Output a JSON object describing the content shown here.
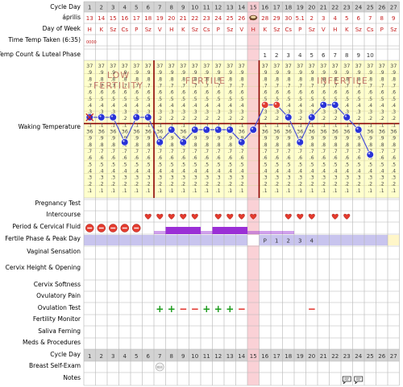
{
  "days": 27,
  "labels": {
    "cycle_day": "Cycle Day",
    "date": "április",
    "day_of_week": "Day of Week",
    "time_taken": "Time Temp Taken (6:35)",
    "temp_count": "Temp Count & Luteal Phase",
    "waking_temp": "Waking Temperature",
    "pregnancy_test": "Pregnancy Test",
    "intercourse": "Intercourse",
    "period_cf": "Period & Cervical Fluid",
    "fertile_phase": "Fertile Phase & Peak Day",
    "vaginal_sensation": "Vaginal Sensation",
    "cervix_height": "Cervix Height & Opening",
    "cervix_softness": "Cervix Softness",
    "ovulatory_pain": "Ovulatory Pain",
    "ovulation_test": "Ovulation Test",
    "fertility_monitor": "Fertility Monitor",
    "saliva_ferning": "Saliva Ferning",
    "meds": "Meds & Procedures",
    "cycle_day_bottom": "Cycle Day",
    "breast_exam": "Breast Self-Exam",
    "notes": "Notes"
  },
  "cycle_days": [
    "1",
    "2",
    "3",
    "4",
    "5",
    "6",
    "7",
    "8",
    "9",
    "10",
    "11",
    "12",
    "13",
    "14",
    "15",
    "16",
    "17",
    "18",
    "19",
    "20",
    "21",
    "22",
    "23",
    "24",
    "25",
    "26",
    "27"
  ],
  "dates": [
    "13",
    "14",
    "15",
    "16",
    "17",
    "18",
    "19",
    "20",
    "21",
    "22",
    "23",
    "24",
    "25",
    "26",
    "27",
    "28",
    "29",
    "30",
    "5.1",
    "2",
    "3",
    "4",
    "5",
    "6",
    "7",
    "8",
    "9"
  ],
  "weekdays": [
    "H",
    "K",
    "Sz",
    "Cs",
    "P",
    "Sz",
    "V",
    "H",
    "K",
    "Sz",
    "Cs",
    "P",
    "Sz",
    "V",
    "H",
    "K",
    "Sz",
    "Cs",
    "P",
    "Sz",
    "V",
    "H",
    "K",
    "Sz",
    "Cs",
    "P",
    "Sz"
  ],
  "time_taken_mark": "0000",
  "temp_count": [
    "",
    "",
    "",
    "",
    "",
    "",
    "",
    "",
    "",
    "",
    "",
    "",
    "",
    "",
    "",
    "1",
    "2",
    "3",
    "4",
    "5",
    "6",
    "7",
    "8",
    "9",
    "10",
    "",
    ""
  ],
  "phase_labels": {
    "low": "LOW",
    "fertility": "FERTILITY",
    "fertile": "FERTILE",
    "infertile": "INFERTILE"
  },
  "temp_scale": [
    "37",
    ".9",
    ".8",
    ".7",
    ".6",
    ".5",
    ".4",
    ".3",
    ".2",
    ".1",
    "36",
    ".9",
    ".8",
    ".7",
    ".6",
    ".5",
    ".4",
    ".3",
    ".2",
    ".1"
  ],
  "temps": [
    36.6,
    36.6,
    36.6,
    36.4,
    36.6,
    36.6,
    36.4,
    36.5,
    36.4,
    36.5,
    36.5,
    36.5,
    36.5,
    36.4,
    36.5,
    36.7,
    36.7,
    36.6,
    36.4,
    36.6,
    36.7,
    36.7,
    36.6,
    36.5,
    36.3,
    null,
    null
  ],
  "temp_point_kinds": [
    "excluded",
    "low",
    "low",
    "low",
    "low",
    "low",
    "low",
    "low",
    "low",
    "low",
    "low",
    "low",
    "low",
    "low",
    "low",
    "high",
    "high",
    "low",
    "low",
    "low",
    "low",
    "low",
    "low",
    "low",
    "low",
    "",
    ""
  ],
  "coverline_temp": 36.55,
  "intercourse_days": [
    6,
    7,
    8,
    9,
    10,
    12,
    13,
    14,
    15,
    18,
    19,
    20,
    22,
    23
  ],
  "period_days": [
    1,
    2,
    3,
    4,
    5
  ],
  "cervical_fluid": [
    0,
    0,
    0,
    0,
    0,
    0,
    1,
    2,
    2,
    2,
    1,
    2,
    2,
    2,
    1,
    1,
    1,
    1,
    0,
    0,
    0,
    0,
    0,
    0,
    0,
    0,
    0
  ],
  "fertile_codes": [
    "",
    "",
    "",
    "",
    "",
    "",
    "",
    "",
    "",
    "",
    "",
    "",
    "",
    "",
    "",
    "P",
    "1",
    "2",
    "3",
    "4",
    "",
    "",
    "",
    "",
    "",
    "",
    ""
  ],
  "ovulation_test": [
    "",
    "",
    "",
    "",
    "",
    "",
    "+",
    "+",
    "−",
    "−",
    "+",
    "+",
    "+",
    "−",
    "",
    "",
    "",
    "",
    "",
    "−",
    "",
    "",
    "",
    "",
    "",
    "",
    ""
  ],
  "breast_exam_mark": "BSE",
  "colors": {
    "bg_header": "#d3d3d3",
    "temp_bg": "#ffffcc",
    "highlight": "#f9c9cf",
    "coverline": "#8b0000",
    "low_dot": "#2a33d6",
    "high_dot": "#e03c32",
    "fertile_band": "#c8c4ee",
    "cervical_fluid": "#9a2fd6",
    "heart": "#e43b2e",
    "ovulation_pos": "#1a9a1a",
    "ovulation_neg": "#e0251b"
  }
}
